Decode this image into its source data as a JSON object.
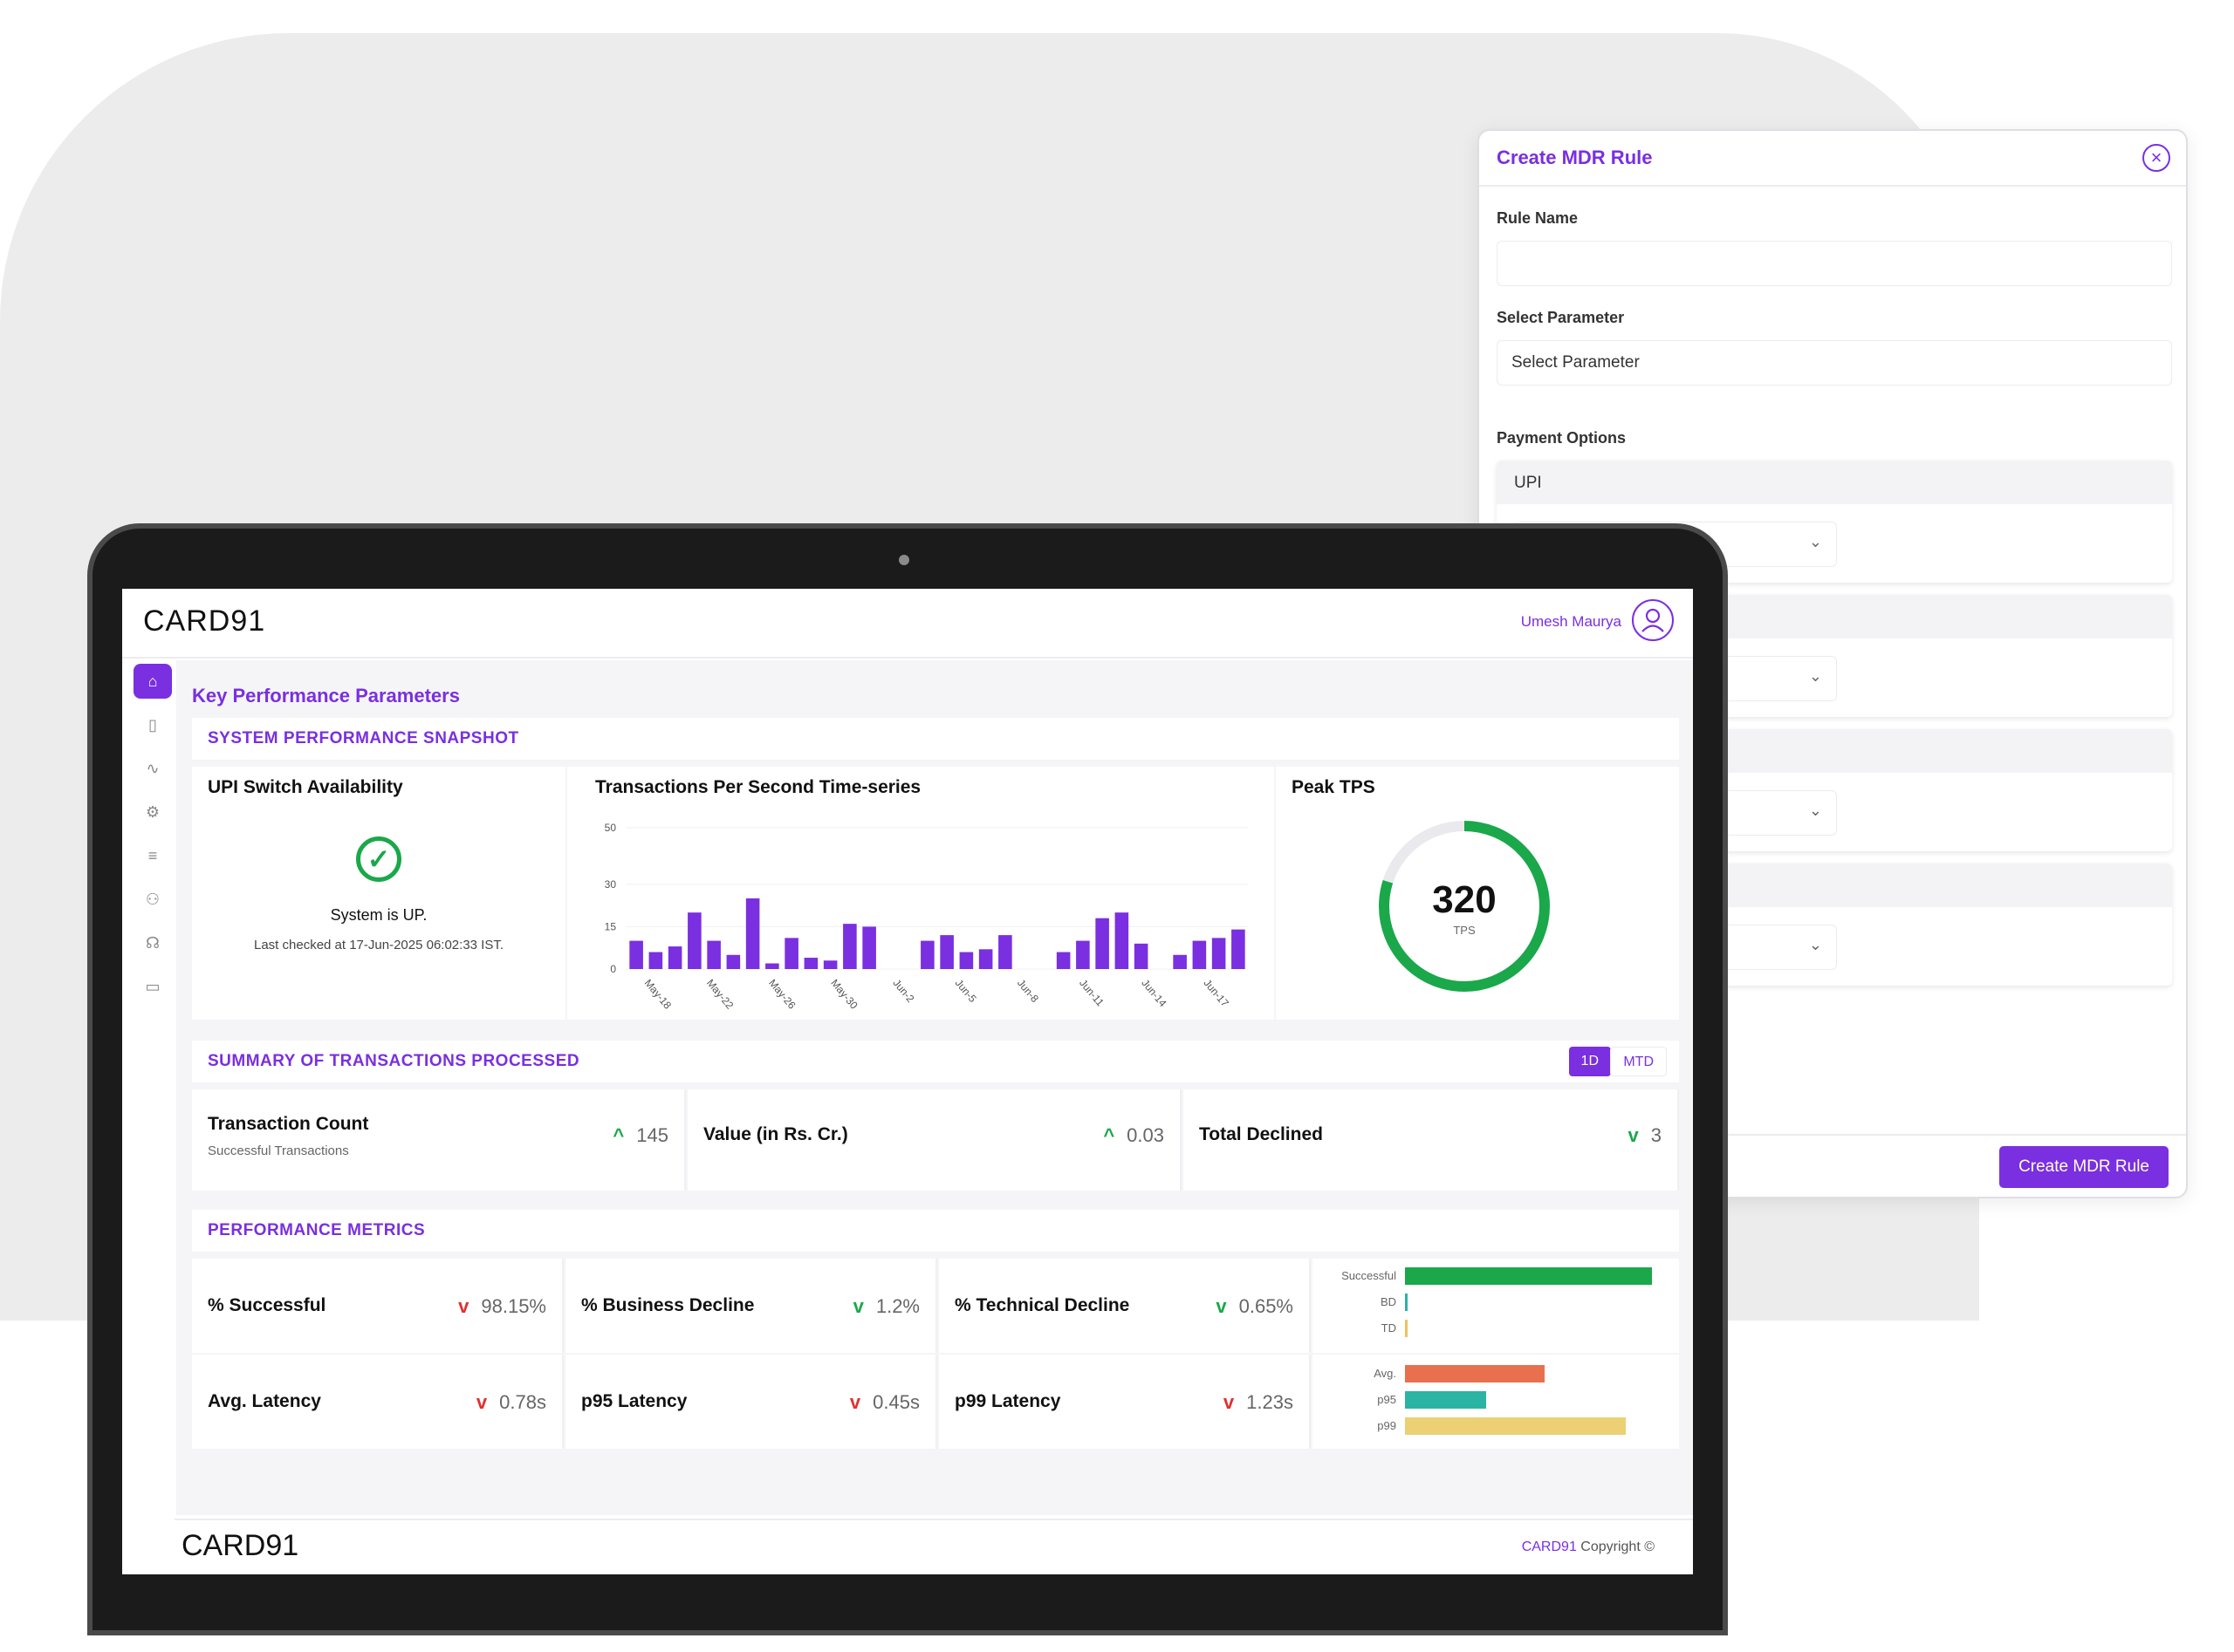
{
  "modal": {
    "title": "Create MDR Rule",
    "close_icon": "close-icon",
    "rule_name_label": "Rule Name",
    "rule_name_value": "",
    "select_parameter_label": "Select Parameter",
    "select_parameter_placeholder": "Select Parameter",
    "payment_options_label": "Payment Options",
    "payment_blocks": [
      {
        "header": "UPI"
      },
      {
        "header": ""
      },
      {
        "header": ""
      },
      {
        "header": ""
      }
    ],
    "create_button": "Create MDR Rule"
  },
  "app": {
    "brand": "CARD91",
    "user_name": "Umesh Maurya",
    "sidebar_icons": [
      "home-icon",
      "book-icon",
      "activity-icon",
      "settings-icon",
      "list-check-icon",
      "users-icon",
      "headset-icon",
      "card-icon"
    ],
    "page_title": "Key Performance Parameters"
  },
  "snapshot": {
    "section_title": "SYSTEM PERFORMANCE SNAPSHOT",
    "availability_title": "UPI Switch Availability",
    "status_text": "System is UP.",
    "last_checked": "Last checked at 17-Jun-2025 06:02:33 IST.",
    "tps_title": "Transactions Per Second Time-series",
    "peak_title": "Peak TPS",
    "peak_value": "320",
    "peak_unit": "TPS"
  },
  "chart_data": {
    "type": "bar",
    "title": "Transactions Per Second Time-series",
    "yticks": [
      0,
      15,
      30,
      50
    ],
    "xticks": [
      "May-18",
      "May-22",
      "May-26",
      "May-30",
      "Jun-2",
      "Jun-5",
      "Jun-8",
      "Jun-11",
      "Jun-14",
      "Jun-17"
    ],
    "values": [
      10,
      6,
      8,
      20,
      10,
      5,
      25,
      2,
      11,
      4,
      3,
      16,
      15,
      0,
      0,
      10,
      12,
      6,
      7,
      12,
      0,
      0,
      6,
      10,
      18,
      20,
      9,
      0,
      5,
      10,
      11,
      14
    ],
    "ylim": [
      0,
      50
    ],
    "color": "#7a2fe0"
  },
  "summary": {
    "section_title": "SUMMARY OF TRANSACTIONS PROCESSED",
    "toggle_1d": "1D",
    "toggle_mtd": "MTD",
    "items": [
      {
        "name": "Transaction Count",
        "sub": "Successful Transactions",
        "arrow": "^",
        "value": "145"
      },
      {
        "name": "Value (in Rs. Cr.)",
        "sub": "",
        "arrow": "^",
        "value": "0.03"
      },
      {
        "name": "Total Declined",
        "sub": "",
        "arrow": "v",
        "value": "3"
      }
    ]
  },
  "performance": {
    "section_title": "PERFORMANCE METRICS",
    "rows": [
      [
        {
          "name": "% Successful",
          "value": "98.15%"
        },
        {
          "name": "% Business Decline",
          "value": "1.2%"
        },
        {
          "name": "% Technical Decline",
          "value": "0.65%"
        }
      ],
      [
        {
          "name": "Avg. Latency",
          "value": "0.78s"
        },
        {
          "name": "p95 Latency",
          "value": "0.45s"
        },
        {
          "name": "p99 Latency",
          "value": "1.23s"
        }
      ]
    ],
    "rate_bars": [
      {
        "label": "Successful",
        "value": 98.15,
        "color": "#1aa84a"
      },
      {
        "label": "BD",
        "value": 1.2,
        "color": "#2bb3a3"
      },
      {
        "label": "TD",
        "value": 0.65,
        "color": "#f0c060"
      }
    ],
    "latency_bars": [
      {
        "label": "Avg.",
        "value": 0.78,
        "color": "#e8704e"
      },
      {
        "label": "p95",
        "value": 0.45,
        "color": "#2bb3a3"
      },
      {
        "label": "p99",
        "value": 1.23,
        "color": "#ecd074"
      }
    ]
  },
  "footer": {
    "brand": "CARD91",
    "copy_brand": "CARD91",
    "copy_text": " Copyright ©"
  }
}
